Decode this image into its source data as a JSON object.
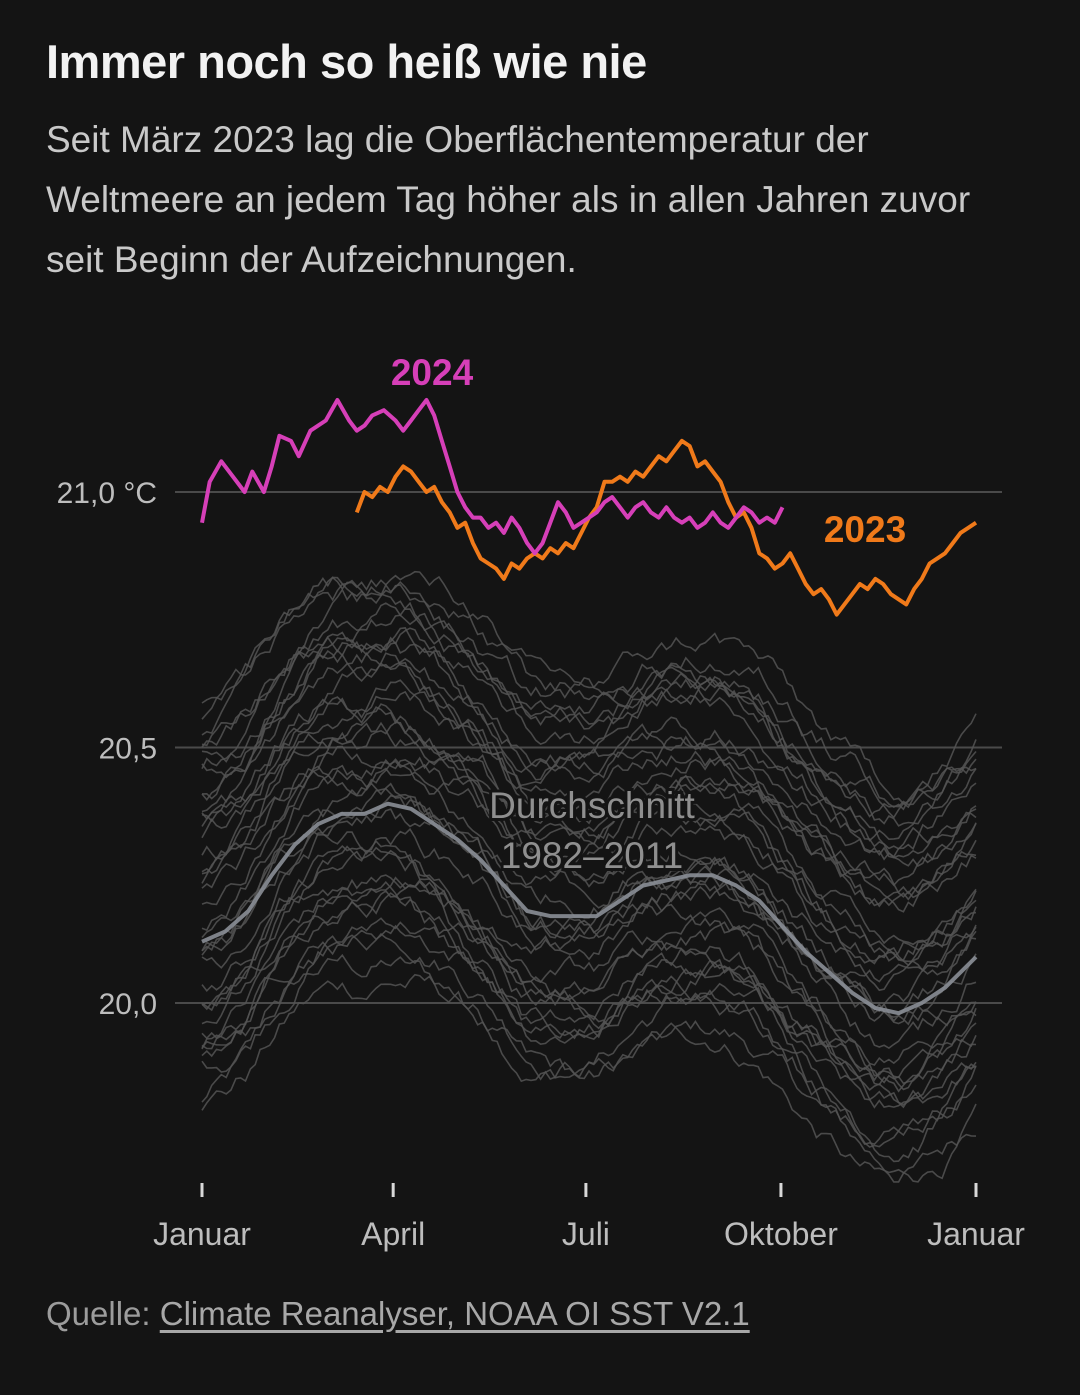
{
  "title": "Immer noch so heiß wie nie",
  "subtitle": "Seit März 2023 lag die Oberflächentemperatur der Weltmeere an jedem Tag höher als in allen Jahren zuvor seit Beginn der Aufzeichnungen.",
  "source": {
    "prefix": "Quelle: ",
    "link_text": "Climate Reanalyser, NOAA OI SST V2.1"
  },
  "colors": {
    "background": "#141414",
    "y2024": "#d63fb8",
    "y2023": "#f07a1a",
    "average": "#8a8e96",
    "history": "#545454",
    "gridline": "#4a4a4a"
  },
  "chart_data": {
    "type": "line",
    "ylim": [
      19.6,
      21.35
    ],
    "xlim": [
      0,
      1
    ],
    "y_ticks": [
      {
        "value": 21.0,
        "label": "21,0 °C"
      },
      {
        "value": 20.5,
        "label": "20,5"
      },
      {
        "value": 20.0,
        "label": "20,0"
      }
    ],
    "x_ticks": [
      {
        "value": 0.0,
        "label": "Januar"
      },
      {
        "value": 0.247,
        "label": "April"
      },
      {
        "value": 0.496,
        "label": "Juli"
      },
      {
        "value": 0.748,
        "label": "Oktober"
      },
      {
        "value": 1.0,
        "label": "Januar"
      }
    ],
    "series": [
      {
        "name": "2024",
        "color_key": "y2024",
        "x": [
          0.0,
          0.01,
          0.025,
          0.04,
          0.055,
          0.065,
          0.08,
          0.09,
          0.1,
          0.115,
          0.125,
          0.14,
          0.16,
          0.175,
          0.19,
          0.2,
          0.21,
          0.22,
          0.235,
          0.25,
          0.26,
          0.27,
          0.28,
          0.29,
          0.3,
          0.31,
          0.32,
          0.33,
          0.34,
          0.35,
          0.36,
          0.37,
          0.38,
          0.39,
          0.4,
          0.41,
          0.42,
          0.43,
          0.44,
          0.45,
          0.46,
          0.47,
          0.48,
          0.49,
          0.5,
          0.51,
          0.52,
          0.53,
          0.54,
          0.55,
          0.56,
          0.57,
          0.58,
          0.59,
          0.6,
          0.61,
          0.62,
          0.63,
          0.64,
          0.65,
          0.66,
          0.67,
          0.68,
          0.69,
          0.7,
          0.71,
          0.72,
          0.73,
          0.74,
          0.75
        ],
        "y": [
          20.94,
          21.02,
          21.06,
          21.03,
          21.0,
          21.04,
          21.0,
          21.05,
          21.11,
          21.1,
          21.07,
          21.12,
          21.14,
          21.18,
          21.14,
          21.12,
          21.13,
          21.15,
          21.16,
          21.14,
          21.12,
          21.14,
          21.16,
          21.18,
          21.15,
          21.1,
          21.05,
          21.0,
          20.97,
          20.95,
          20.95,
          20.93,
          20.94,
          20.92,
          20.95,
          20.93,
          20.9,
          20.88,
          20.9,
          20.94,
          20.98,
          20.96,
          20.93,
          20.94,
          20.95,
          20.96,
          20.98,
          20.99,
          20.97,
          20.95,
          20.97,
          20.98,
          20.96,
          20.95,
          20.97,
          20.95,
          20.94,
          20.95,
          20.93,
          20.94,
          20.96,
          20.94,
          20.93,
          20.95,
          20.97,
          20.96,
          20.94,
          20.95,
          20.94,
          20.97
        ]
      },
      {
        "name": "2023",
        "color_key": "y2023",
        "x": [
          0.2,
          0.21,
          0.22,
          0.23,
          0.24,
          0.25,
          0.26,
          0.27,
          0.28,
          0.29,
          0.3,
          0.31,
          0.32,
          0.33,
          0.34,
          0.35,
          0.36,
          0.37,
          0.38,
          0.39,
          0.4,
          0.41,
          0.42,
          0.43,
          0.44,
          0.45,
          0.46,
          0.47,
          0.48,
          0.49,
          0.5,
          0.51,
          0.52,
          0.53,
          0.54,
          0.55,
          0.56,
          0.57,
          0.58,
          0.59,
          0.6,
          0.61,
          0.62,
          0.63,
          0.64,
          0.65,
          0.66,
          0.67,
          0.68,
          0.69,
          0.7,
          0.71,
          0.72,
          0.73,
          0.74,
          0.75,
          0.76,
          0.77,
          0.78,
          0.79,
          0.8,
          0.81,
          0.82,
          0.83,
          0.84,
          0.85,
          0.86,
          0.87,
          0.88,
          0.89,
          0.9,
          0.91,
          0.92,
          0.93,
          0.94,
          0.95,
          0.96,
          0.97,
          0.98,
          0.99,
          1.0
        ],
        "y": [
          20.96,
          21.0,
          20.99,
          21.01,
          21.0,
          21.03,
          21.05,
          21.04,
          21.02,
          21.0,
          21.01,
          20.98,
          20.96,
          20.93,
          20.94,
          20.9,
          20.87,
          20.86,
          20.85,
          20.83,
          20.86,
          20.85,
          20.87,
          20.88,
          20.87,
          20.89,
          20.88,
          20.9,
          20.89,
          20.92,
          20.95,
          20.97,
          21.02,
          21.02,
          21.03,
          21.02,
          21.04,
          21.03,
          21.05,
          21.07,
          21.06,
          21.08,
          21.1,
          21.09,
          21.05,
          21.06,
          21.04,
          21.02,
          20.98,
          20.95,
          20.96,
          20.93,
          20.88,
          20.87,
          20.85,
          20.86,
          20.88,
          20.85,
          20.82,
          20.8,
          20.81,
          20.79,
          20.76,
          20.78,
          20.8,
          20.82,
          20.81,
          20.83,
          20.82,
          20.8,
          20.79,
          20.78,
          20.81,
          20.83,
          20.86,
          20.87,
          20.88,
          20.9,
          20.92,
          20.93,
          20.94
        ]
      },
      {
        "name": "Durchschnitt 1982–2011",
        "color_key": "average",
        "x": [
          0.0,
          0.03,
          0.06,
          0.09,
          0.12,
          0.15,
          0.18,
          0.21,
          0.24,
          0.27,
          0.3,
          0.33,
          0.36,
          0.39,
          0.42,
          0.45,
          0.48,
          0.51,
          0.54,
          0.57,
          0.6,
          0.63,
          0.66,
          0.69,
          0.72,
          0.75,
          0.78,
          0.81,
          0.84,
          0.87,
          0.9,
          0.93,
          0.96,
          1.0
        ],
        "y": [
          20.12,
          20.14,
          20.18,
          20.25,
          20.31,
          20.35,
          20.37,
          20.37,
          20.39,
          20.38,
          20.35,
          20.32,
          20.28,
          20.23,
          20.18,
          20.17,
          20.17,
          20.17,
          20.2,
          20.23,
          20.24,
          20.25,
          20.25,
          20.23,
          20.2,
          20.15,
          20.1,
          20.06,
          20.02,
          19.99,
          19.98,
          20.0,
          20.03,
          20.09
        ]
      }
    ],
    "history_years": {
      "count": 40,
      "y_range": [
        19.65,
        20.97
      ]
    }
  }
}
